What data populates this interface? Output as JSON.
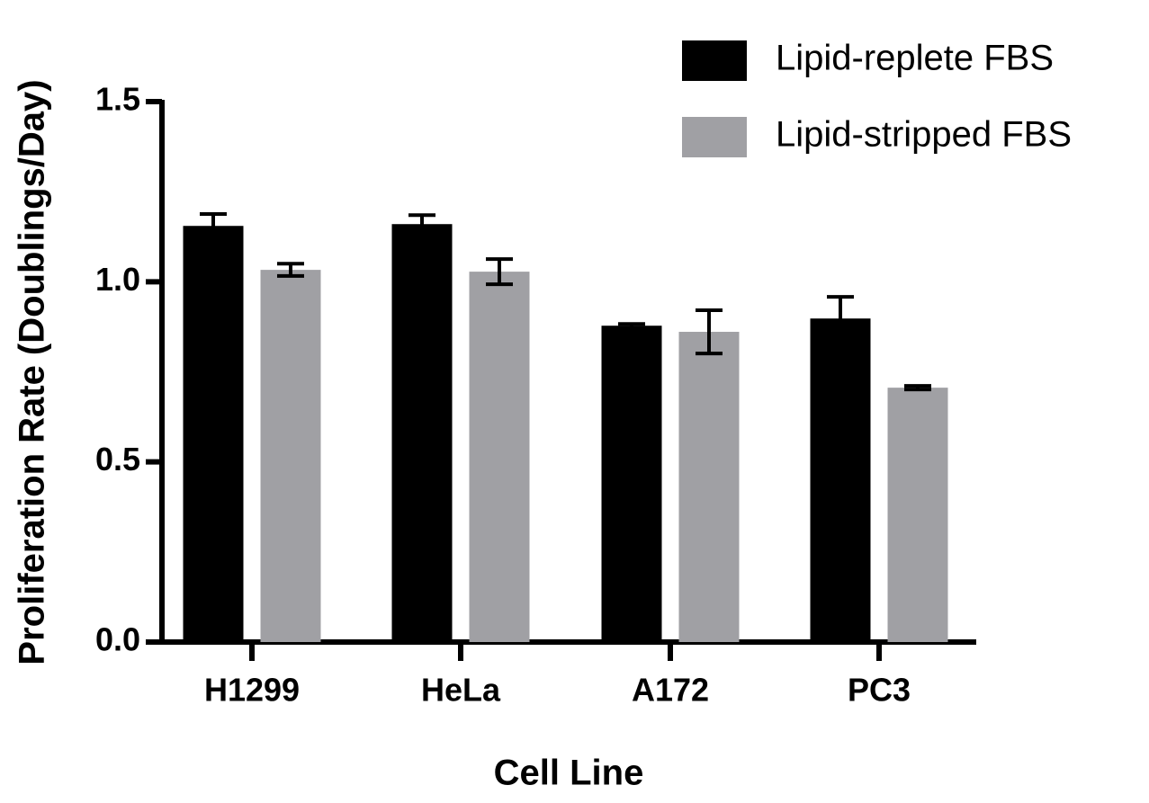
{
  "chart_data": {
    "type": "bar",
    "x_label": "Cell Line",
    "y_label": "Proliferation Rate (Doublings/Day)",
    "categories": [
      "H1299",
      "HeLa",
      "A172",
      "PC3"
    ],
    "series": [
      {
        "name": "Lipid-replete FBS",
        "color": "#000000",
        "values": [
          1.155,
          1.16,
          0.878,
          0.898
        ],
        "errors": [
          0.033,
          0.025,
          0.005,
          0.06
        ]
      },
      {
        "name": "Lipid-stripped FBS",
        "color": "#a0a0a4",
        "values": [
          1.033,
          1.028,
          0.861,
          0.706
        ],
        "errors": [
          0.017,
          0.035,
          0.06,
          0.005
        ]
      }
    ],
    "ylim": [
      0,
      1.5
    ],
    "yticks": [
      {
        "value": 0,
        "label": "0.0"
      },
      0.5,
      {
        "value": 1,
        "label": "1.0"
      },
      {
        "value": 1.5,
        "label": "1.5"
      }
    ],
    "legend": "top-right"
  }
}
